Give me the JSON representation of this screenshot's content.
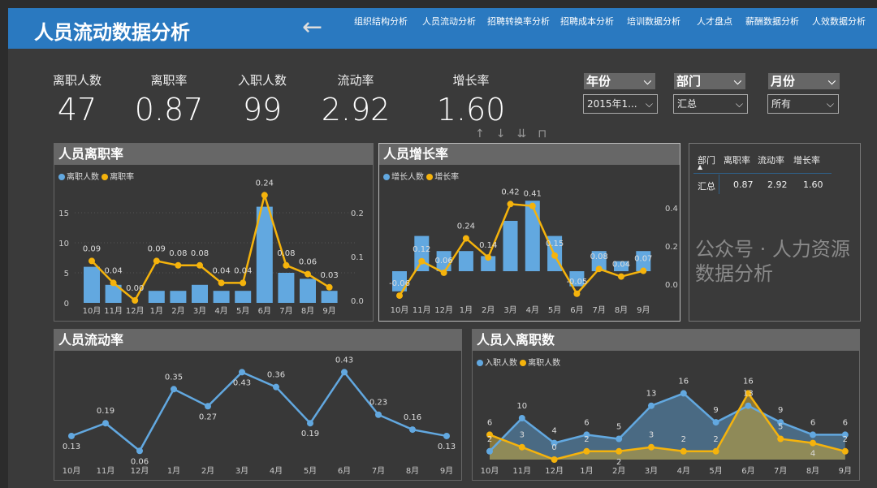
{
  "header": {
    "title": "人员流动数据分析",
    "nav": [
      "组织结构分析",
      "人员流动分析",
      "招聘转换率分析",
      "招聘成本分析",
      "培训数据分析",
      "人才盘点",
      "薪酬数据分析",
      "人效数据分析"
    ]
  },
  "kpis": [
    {
      "label": "离职人数",
      "value": "47"
    },
    {
      "label": "离职率",
      "value": "0.87"
    },
    {
      "label": "入职人数",
      "value": "99"
    },
    {
      "label": "流动率",
      "value": "2.92"
    },
    {
      "label": "增长率",
      "value": "1.60"
    }
  ],
  "slicers": [
    {
      "label": "年份",
      "value": "2015年1..."
    },
    {
      "label": "部门",
      "value": "汇总"
    },
    {
      "label": "月份",
      "value": "所有"
    }
  ],
  "table": {
    "headers": [
      "部门",
      "离职率",
      "流动率",
      "增长率"
    ],
    "rows": [
      [
        "汇总",
        "0.87",
        "2.92",
        "1.60"
      ]
    ]
  },
  "watermark": "公众号 · 人力资源数据分析",
  "colors": {
    "blue": "#62a8e0",
    "orange": "#f5b30c",
    "header": "#2a79c0"
  },
  "chart_data": [
    {
      "title": "人员离职率",
      "type": "bar+line",
      "categories": [
        "10月",
        "11月",
        "12月",
        "1月",
        "2月",
        "3月",
        "4月",
        "5月",
        "6月",
        "7月",
        "8月",
        "9月"
      ],
      "series": [
        {
          "name": "离职人数",
          "type": "bar",
          "values": [
            6,
            3,
            0,
            2,
            2,
            3,
            2,
            2,
            16,
            5,
            4,
            2
          ]
        },
        {
          "name": "离职率",
          "type": "line",
          "axis": "right",
          "values": [
            0.09,
            0.04,
            0.0,
            0.09,
            0.08,
            0.08,
            0.04,
            0.04,
            0.24,
            0.08,
            0.06,
            0.03
          ]
        }
      ],
      "yticks_left": [
        "0",
        "5",
        "10",
        "15"
      ],
      "yticks_right": [
        "0.0",
        "0.1",
        "0.2"
      ],
      "grid": true,
      "legend": "top-left"
    },
    {
      "title": "人员增长率",
      "type": "bar+line",
      "categories": [
        "10月",
        "11月",
        "12月",
        "1月",
        "2月",
        "3月",
        "4月",
        "5月",
        "6月",
        "7月",
        "8月",
        "9月"
      ],
      "series": [
        {
          "name": "增长人数",
          "type": "bar",
          "values": [
            -4,
            7,
            4,
            4,
            3,
            10,
            14,
            7,
            -3,
            4,
            2,
            4
          ]
        },
        {
          "name": "增长率",
          "type": "line",
          "axis": "right",
          "values": [
            -0.06,
            0.12,
            0.06,
            0.24,
            0.14,
            0.42,
            0.41,
            0.15,
            -0.05,
            0.08,
            0.04,
            0.07
          ]
        }
      ],
      "yticks_right": [
        "0.0",
        "0.2",
        "0.4"
      ],
      "legend": "top-left"
    },
    {
      "title": "人员流动率",
      "type": "line",
      "categories": [
        "10月",
        "11月",
        "12月",
        "1月",
        "2月",
        "3月",
        "4月",
        "5月",
        "6月",
        "7月",
        "8月",
        "9月"
      ],
      "series": [
        {
          "values": [
            0.13,
            0.19,
            0.06,
            0.35,
            0.27,
            0.43,
            0.36,
            0.19,
            0.43,
            0.23,
            0.16,
            0.13
          ]
        }
      ]
    },
    {
      "title": "人员入离职数",
      "type": "area",
      "categories": [
        "10月",
        "11月",
        "12月",
        "1月",
        "2月",
        "3月",
        "4月",
        "5月",
        "6月",
        "7月",
        "8月",
        "9月"
      ],
      "series": [
        {
          "name": "入职人数",
          "values": [
            2,
            10,
            4,
            6,
            5,
            13,
            16,
            9,
            13,
            9,
            6,
            6
          ]
        },
        {
          "name": "离职人数",
          "values": [
            6,
            3,
            0,
            2,
            2,
            3,
            2,
            2,
            16,
            5,
            4,
            2
          ]
        }
      ],
      "legend": "top-left"
    }
  ]
}
